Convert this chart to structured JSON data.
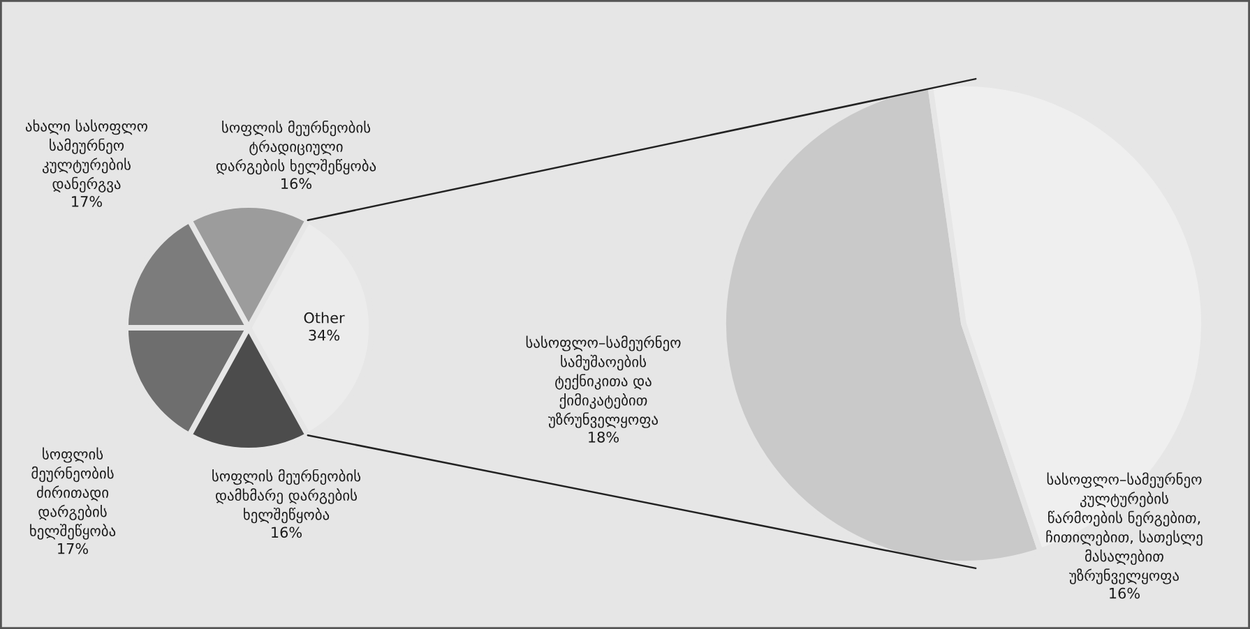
{
  "chart_data": [
    {
      "type": "pie",
      "categories": [
        "Other",
        "სოფლის მეურნეობის\nტრადიციული\nდარგების ხელშეწყობა",
        "ახალი სასოფლო\nსამეურნეო\nკულტურების\nდანერგვა",
        "სოფლის\nმეურნეობის\nძირითადი\nდარგების\nხელშეწყობა",
        "სოფლის მეურნეობის\nდამხმარე დარგების\nხელშეწყობა"
      ],
      "values": [
        34,
        16,
        17,
        17,
        16
      ],
      "value_labels": [
        "34%",
        "16%",
        "17%",
        "17%",
        "16%"
      ],
      "colors": [
        "#ececec",
        "#9c9c9c",
        "#7c7c7c",
        "#6e6e6e",
        "#4c4c4c"
      ]
    },
    {
      "type": "pie",
      "categories": [
        "სასოფლო–სამეურნეო\nსამუშაოების\nტექნიკითა და\nქიმიკატებით\nუზრუნველყოფა",
        "სასოფლო–სამეურნეო\nკულტურების\nწარმოების ნერგებით,\nჩითილებით, სათესლე\nმასალებით\nუზრუნველყოფა"
      ],
      "values": [
        18,
        16
      ],
      "value_labels": [
        "18%",
        "16%"
      ],
      "colors": [
        "#c9c9c9",
        "#efefef"
      ]
    }
  ]
}
